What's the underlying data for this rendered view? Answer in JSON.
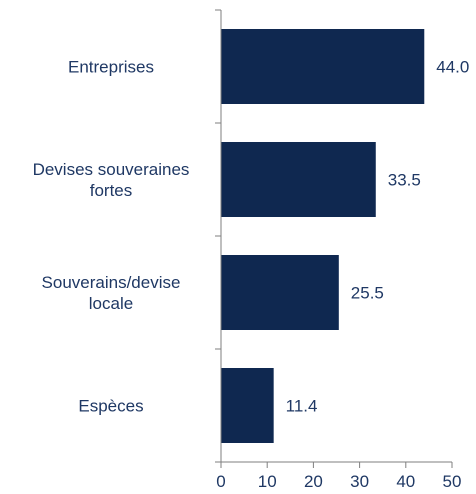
{
  "chart_data": {
    "type": "bar",
    "orientation": "horizontal",
    "categories": [
      [
        "Entreprises"
      ],
      [
        "Devises souveraines",
        "fortes"
      ],
      [
        "Souverains/devise",
        "locale"
      ],
      [
        "Espèces"
      ]
    ],
    "values": [
      44.0,
      33.5,
      25.5,
      11.4
    ],
    "value_labels": [
      "44.0",
      "33.5",
      "25.5",
      "11.4"
    ],
    "xlim": [
      0,
      50
    ],
    "xticks": [
      0,
      10,
      20,
      30,
      40,
      50
    ],
    "title": "",
    "xlabel": "",
    "ylabel": "",
    "grid": false,
    "bar_color": "#0f2850",
    "text_color": "#1f3864"
  }
}
